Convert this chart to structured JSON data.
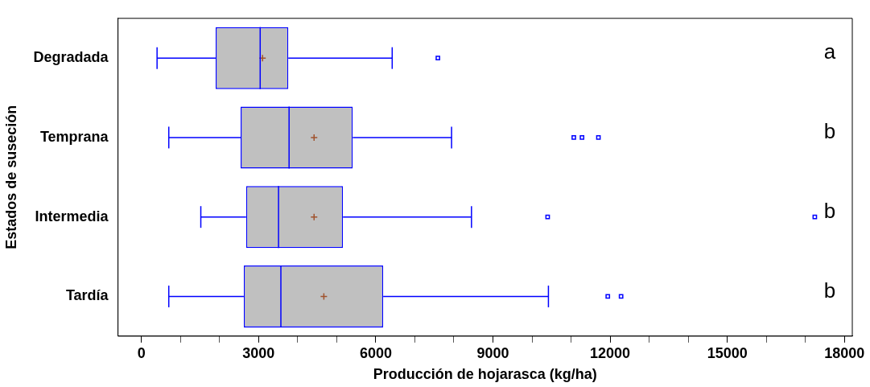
{
  "chart_data": {
    "type": "box",
    "orientation": "horizontal",
    "xlabel": "Producción de hojarasca (kg/ha)",
    "ylabel": "Estados de suseción",
    "categories": [
      "Degradada",
      "Temprana",
      "Intermedia",
      "Tardía"
    ],
    "series": [
      {
        "color": "#0000ff",
        "boxes": [
          {
            "low": 400,
            "q1": 1900,
            "median": 3040,
            "q3": 3760,
            "high": 6420,
            "mean": 3100,
            "outliers": [
              7590
            ]
          },
          {
            "low": 700,
            "q1": 2540,
            "median": 3780,
            "q3": 5410,
            "high": 7940,
            "mean": 4420,
            "outliers": [
              11070,
              11280,
              11700
            ]
          },
          {
            "low": 1520,
            "q1": 2680,
            "median": 3510,
            "q3": 5160,
            "high": 8450,
            "mean": 4420,
            "outliers": [
              10400,
              17240
            ]
          },
          {
            "low": 700,
            "q1": 2620,
            "median": 3570,
            "q3": 6190,
            "high": 10420,
            "mean": 4670,
            "outliers": [
              11940,
              12280
            ]
          }
        ]
      }
    ],
    "xlim": [
      -600,
      18200
    ],
    "xticks": [
      0,
      {
        "value": 1000,
        "label": null
      },
      {
        "value": 2000,
        "label": null
      },
      3000,
      {
        "value": 4000,
        "label": null
      },
      {
        "value": 5000,
        "label": null
      },
      6000,
      {
        "value": 7000,
        "label": null
      },
      {
        "value": 8000,
        "label": null
      },
      9000,
      {
        "value": 10000,
        "label": null
      },
      {
        "value": 11000,
        "label": null
      },
      12000,
      {
        "value": 13000,
        "label": null
      },
      {
        "value": 14000,
        "label": null
      },
      15000,
      {
        "value": 16000,
        "label": null
      },
      {
        "value": 17000,
        "label": null
      },
      18000
    ],
    "grid": false,
    "legend": false,
    "marker": "square",
    "annotations": [
      "a",
      "b",
      "b",
      "b"
    ]
  }
}
